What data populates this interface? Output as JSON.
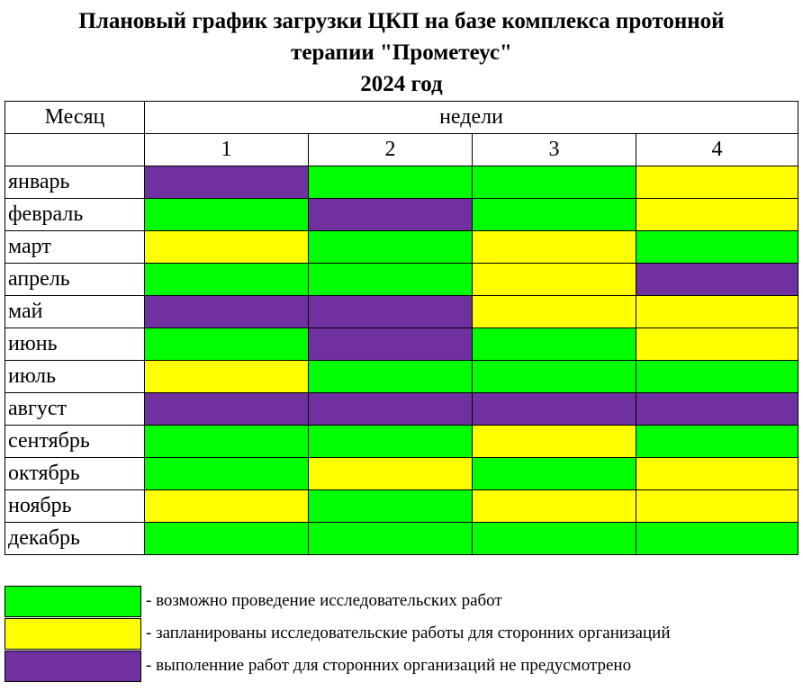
{
  "header": {
    "title_lines": [
      "Плановый график загрузки ЦКП на базе комплекса протонной",
      "терапии \"Прометеус\"",
      "2024 год"
    ]
  },
  "table": {
    "month_header": "Месяц",
    "weeks_header": "недели",
    "weeks": [
      "1",
      "2",
      "3",
      "4"
    ],
    "rows": [
      {
        "month": "январь",
        "cells": [
          "#7030a0",
          "#00ff00",
          "#00ff00",
          "#ffff00"
        ]
      },
      {
        "month": "февраль",
        "cells": [
          "#00ff00",
          "#7030a0",
          "#00ff00",
          "#ffff00"
        ]
      },
      {
        "month": "март",
        "cells": [
          "#ffff00",
          "#00ff00",
          "#ffff00",
          "#00ff00"
        ]
      },
      {
        "month": "апрель",
        "cells": [
          "#00ff00",
          "#00ff00",
          "#ffff00",
          "#7030a0"
        ]
      },
      {
        "month": "май",
        "cells": [
          "#7030a0",
          "#7030a0",
          "#ffff00",
          "#ffff00"
        ]
      },
      {
        "month": "июнь",
        "cells": [
          "#00ff00",
          "#7030a0",
          "#00ff00",
          "#ffff00"
        ]
      },
      {
        "month": "июль",
        "cells": [
          "#ffff00",
          "#00ff00",
          "#00ff00",
          "#00ff00"
        ]
      },
      {
        "month": "август",
        "cells": [
          "#7030a0",
          "#7030a0",
          "#7030a0",
          "#7030a0"
        ]
      },
      {
        "month": "сентябрь",
        "cells": [
          "#00ff00",
          "#00ff00",
          "#ffff00",
          "#00ff00"
        ]
      },
      {
        "month": "октябрь",
        "cells": [
          "#00ff00",
          "#ffff00",
          "#00ff00",
          "#ffff00"
        ]
      },
      {
        "month": "ноябрь",
        "cells": [
          "#ffff00",
          "#00ff00",
          "#ffff00",
          "#ffff00"
        ]
      },
      {
        "month": "декабрь",
        "cells": [
          "#00ff00",
          "#00ff00",
          "#00ff00",
          "#00ff00"
        ]
      }
    ]
  },
  "legend": [
    {
      "color": "#00ff00",
      "label": "- возможно проведение исследовательских работ"
    },
    {
      "color": "#ffff00",
      "label": "- запланированы исследовательские работы для сторонних организаций"
    },
    {
      "color": "#7030a0",
      "label": "- выполенние работ для сторонних организаций не предусмотрено"
    }
  ]
}
